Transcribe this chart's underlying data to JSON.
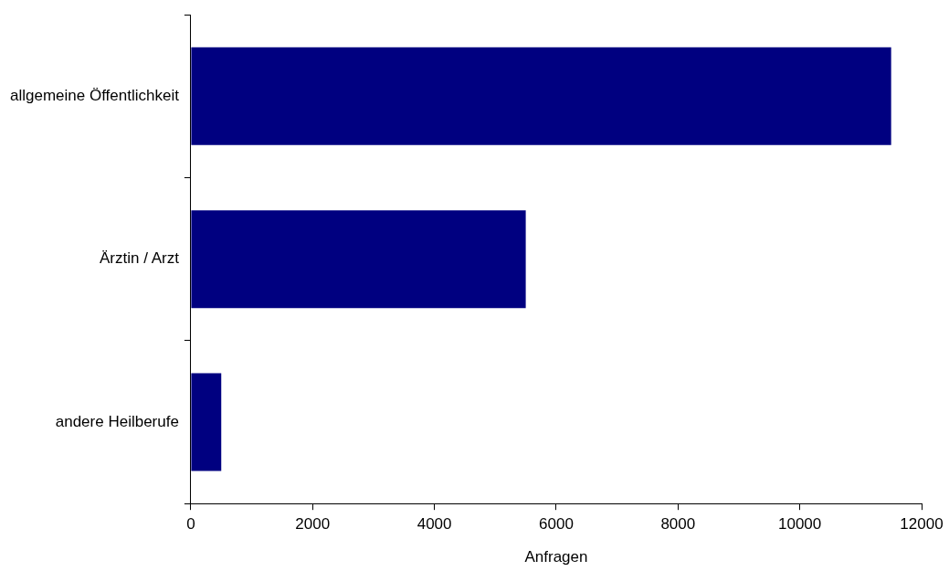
{
  "chart_data": {
    "type": "bar",
    "orientation": "horizontal",
    "xlabel": "Anfragen",
    "categories": [
      "allgemeine Öffentlichkeit",
      "Ärztin / Arzt",
      "andere Heilberufe"
    ],
    "values": [
      11500,
      5500,
      500
    ],
    "color": "#000080",
    "xlim": [
      0,
      12000
    ],
    "xticks": [
      0,
      2000,
      4000,
      6000,
      8000,
      10000,
      12000
    ],
    "grid": false,
    "legend": false
  }
}
